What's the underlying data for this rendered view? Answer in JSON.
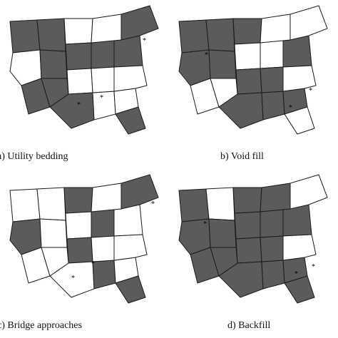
{
  "colors": {
    "filled": "#5b5b5b",
    "empty": "#ffffff",
    "border": "#1a1a1a"
  },
  "panels": [
    {
      "caption": "a) Utility bedding",
      "marker": "*",
      "filled_regions": [
        "west-1",
        "west-3",
        "west-4",
        "central-2",
        "central-4",
        "south-1",
        "south-3",
        "southeast-2",
        "east-1",
        "east-3",
        "northeast-2"
      ]
    },
    {
      "caption": "b) Void fill",
      "marker": "*",
      "filled_regions": [
        "west-1",
        "west-2",
        "west-4",
        "central-1",
        "central-3",
        "central-4",
        "south-1",
        "south-2",
        "southeast-1",
        "east-2",
        "east-3"
      ]
    },
    {
      "caption": "c) Bridge approaches",
      "marker": "*",
      "filled_regions": [
        "west-2",
        "central-1",
        "central-3",
        "south-2",
        "southeast-2",
        "east-1",
        "northeast-2"
      ]
    },
    {
      "caption": "d) Backfill",
      "marker": "*",
      "filled_regions": [
        "west-1",
        "west-2",
        "west-3",
        "central-1",
        "central-2",
        "central-3",
        "central-4",
        "south-1",
        "south-2",
        "south-3",
        "southeast-1",
        "southeast-2",
        "east-1",
        "east-2",
        "east-3",
        "northeast-1"
      ]
    }
  ]
}
